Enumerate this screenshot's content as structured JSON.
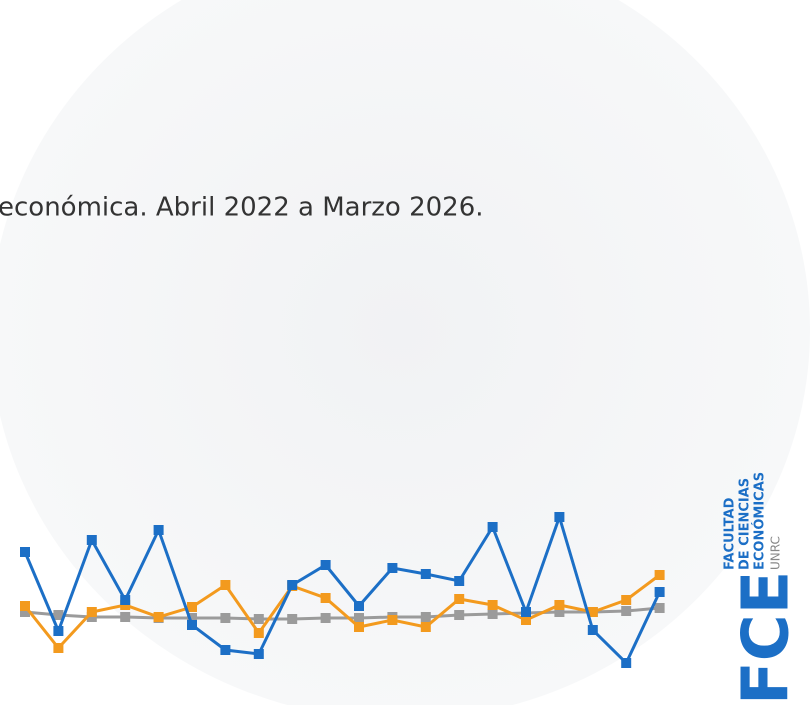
{
  "chart_data": {
    "type": "line",
    "title": "económica. Abril 2022 a Marzo 2026.",
    "categories": [
      null,
      null,
      null,
      null,
      null,
      null,
      null,
      null,
      null,
      null,
      null,
      null,
      null,
      null,
      null,
      null,
      null,
      null,
      null,
      null
    ],
    "ylim": [
      0,
      100
    ],
    "series": [
      {
        "color": "#9b9b9b",
        "values": [
          44,
          42.5,
          41.5,
          41.5,
          41,
          41,
          41,
          40.5,
          40.5,
          41,
          41,
          41.5,
          41.5,
          42.5,
          43,
          43.5,
          44,
          44,
          44.5,
          46
        ]
      },
      {
        "color": "#f39a1e",
        "values": [
          47,
          26,
          44,
          47.5,
          41.5,
          46.5,
          57.5,
          33.5,
          57,
          51,
          36.5,
          40,
          36.5,
          50.5,
          47.5,
          40,
          47.5,
          44,
          50,
          62.5
        ]
      },
      {
        "color": "#1c6fc6",
        "values": [
          74,
          34.5,
          80,
          50,
          85,
          37.5,
          25,
          23,
          57.5,
          67.5,
          47,
          66,
          63,
          59.5,
          86.5,
          44,
          91.5,
          35,
          18.5,
          54
        ]
      }
    ]
  },
  "logo": {
    "mark": "FCE",
    "lines": [
      "FACULTAD",
      "DE CIENCIAS",
      "ECONÓMICAS"
    ],
    "university": "UNRC"
  }
}
